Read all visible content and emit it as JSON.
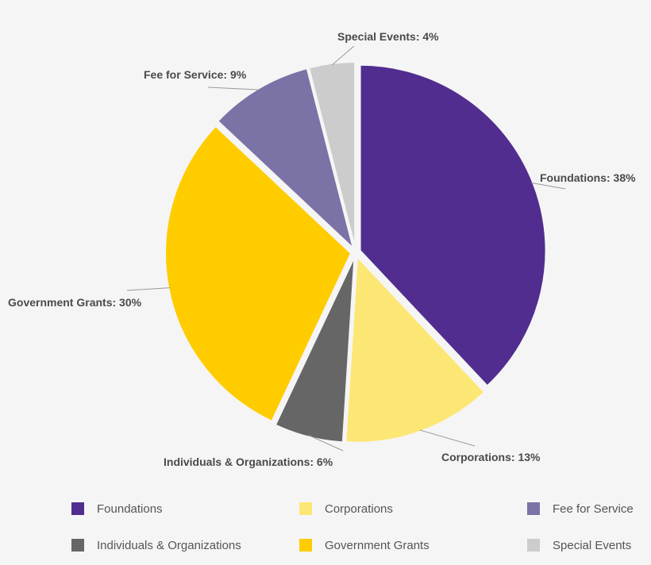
{
  "chart_data": {
    "type": "pie",
    "title": "",
    "start_angle_deg": 0,
    "direction": "clockwise",
    "slices": [
      {
        "label": "Foundations",
        "value": 38,
        "color": "#512d8f"
      },
      {
        "label": "Corporations",
        "value": 13,
        "color": "#fde774"
      },
      {
        "label": "Individuals & Organizations",
        "value": 6,
        "color": "#666666"
      },
      {
        "label": "Government Grants",
        "value": 30,
        "color": "#ffcc00"
      },
      {
        "label": "Fee for Service",
        "value": 9,
        "color": "#7b72a6"
      },
      {
        "label": "Special Events",
        "value": 4,
        "color": "#cccccc"
      }
    ],
    "data_labels": [
      "Foundations: 38%",
      "Corporations: 13%",
      "Individuals & Organizations: 6%",
      "Government Grants: 30%",
      "Fee for Service: 9%",
      "Special Events: 4%"
    ],
    "legend_position": "bottom",
    "legend": [
      {
        "label": "Foundations",
        "color": "#512d8f"
      },
      {
        "label": "Corporations",
        "color": "#fde774"
      },
      {
        "label": "Fee for Service",
        "color": "#7b72a6"
      },
      {
        "label": "Individuals & Organizations",
        "color": "#666666"
      },
      {
        "label": "Government Grants",
        "color": "#ffcc00"
      },
      {
        "label": "Special Events",
        "color": "#cccccc"
      }
    ]
  }
}
